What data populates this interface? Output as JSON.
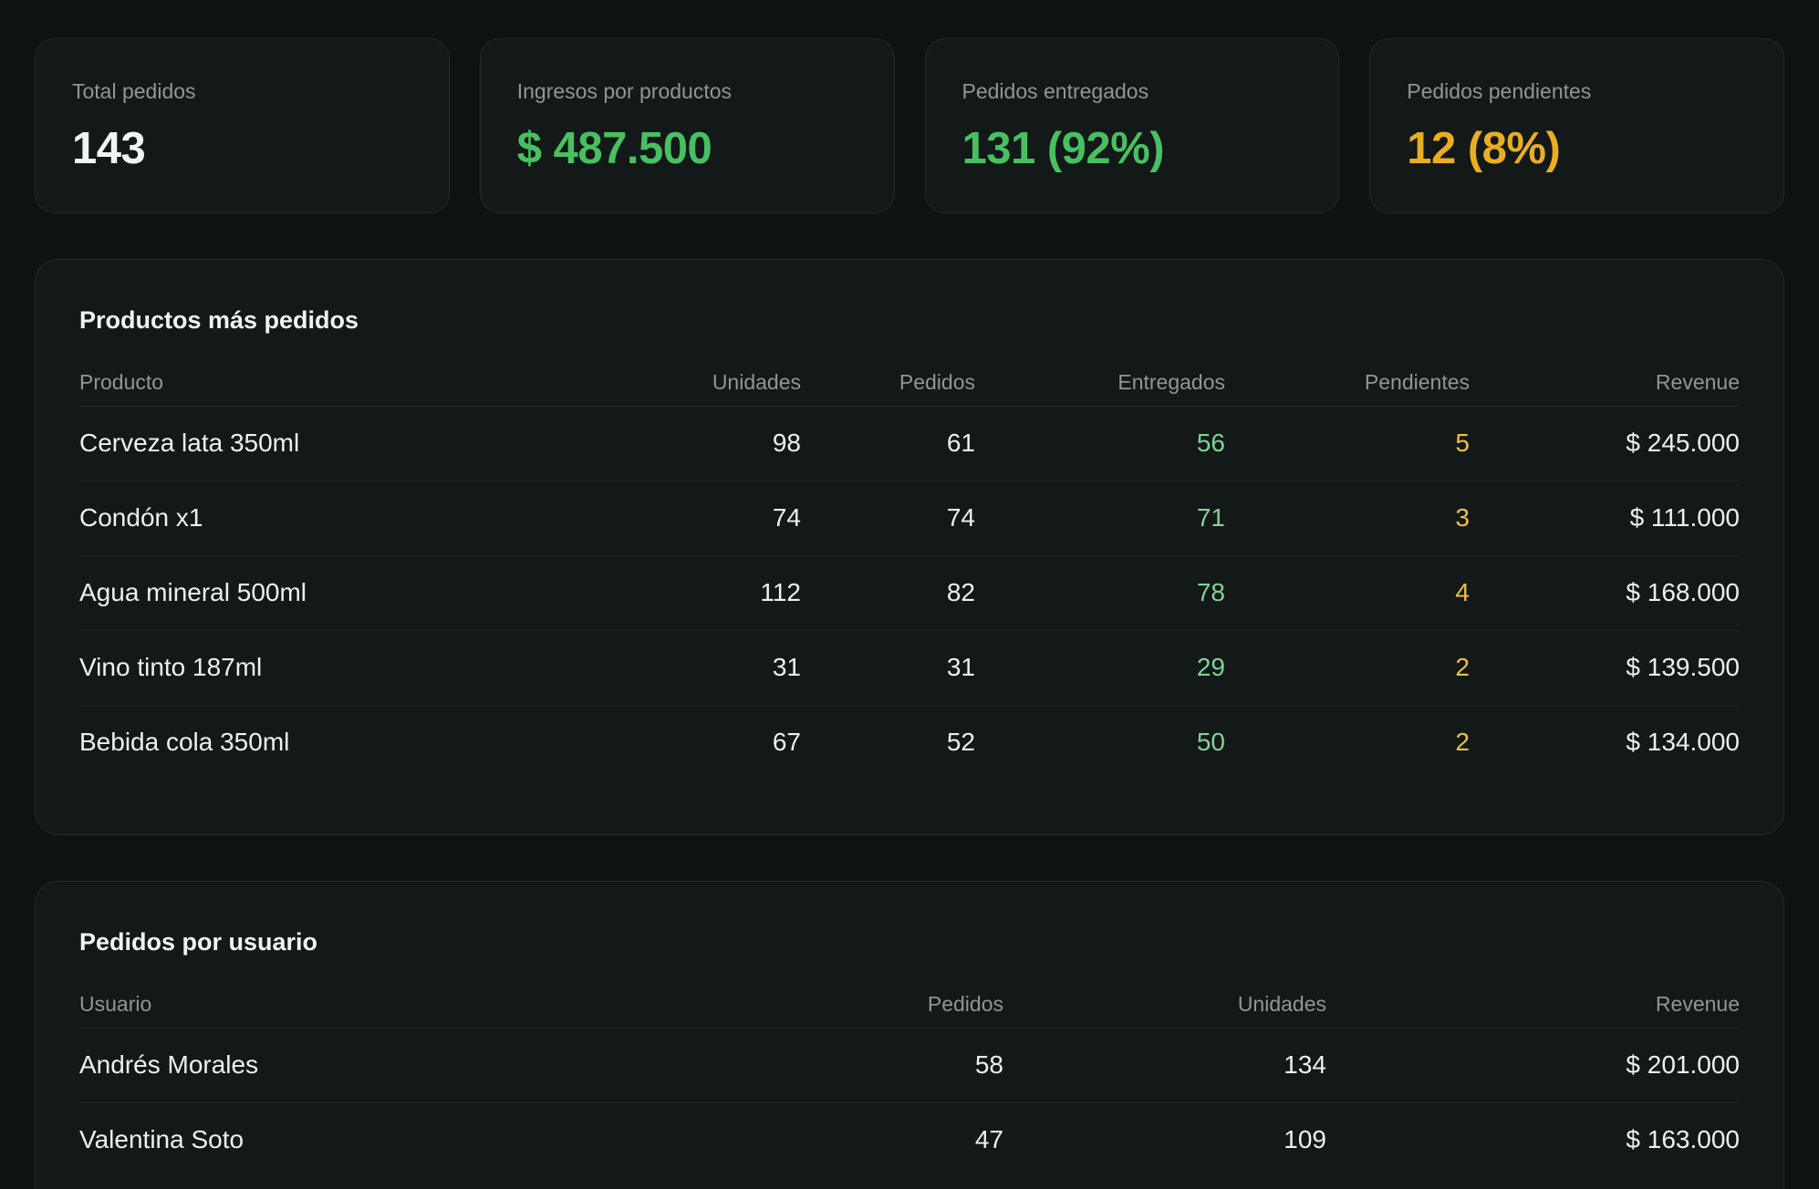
{
  "kpis": [
    {
      "label": "Total pedidos",
      "value": "143",
      "tone": "white"
    },
    {
      "label": "Ingresos por productos",
      "value": "$ 487.500",
      "tone": "green"
    },
    {
      "label": "Pedidos entregados",
      "value": "131 (92%)",
      "tone": "green"
    },
    {
      "label": "Pedidos pendientes",
      "value": "12 (8%)",
      "tone": "amber"
    }
  ],
  "products": {
    "title": "Productos más pedidos",
    "headers": {
      "product": "Producto",
      "units": "Unidades",
      "orders": "Pedidos",
      "delivered": "Entregados",
      "pending": "Pendientes",
      "revenue": "Revenue"
    },
    "rows": [
      {
        "product": "Cerveza lata 350ml",
        "units": "98",
        "orders": "61",
        "delivered": "56",
        "pending": "5",
        "revenue": "$ 245.000"
      },
      {
        "product": "Condón x1",
        "units": "74",
        "orders": "74",
        "delivered": "71",
        "pending": "3",
        "revenue": "$ 111.000"
      },
      {
        "product": "Agua mineral 500ml",
        "units": "112",
        "orders": "82",
        "delivered": "78",
        "pending": "4",
        "revenue": "$ 168.000"
      },
      {
        "product": "Vino tinto 187ml",
        "units": "31",
        "orders": "31",
        "delivered": "29",
        "pending": "2",
        "revenue": "$ 139.500"
      },
      {
        "product": "Bebida cola 350ml",
        "units": "67",
        "orders": "52",
        "delivered": "50",
        "pending": "2",
        "revenue": "$ 134.000"
      }
    ]
  },
  "users": {
    "title": "Pedidos por usuario",
    "headers": {
      "user": "Usuario",
      "orders": "Pedidos",
      "units": "Unidades",
      "revenue": "Revenue"
    },
    "rows": [
      {
        "user": "Andrés Morales",
        "orders": "58",
        "units": "134",
        "revenue": "$ 201.000"
      },
      {
        "user": "Valentina Soto",
        "orders": "47",
        "units": "109",
        "revenue": "$ 163.000"
      }
    ]
  },
  "colors": {
    "background": "#0d1212",
    "card": "#131818",
    "accent_green": "#48c062",
    "accent_amber": "#e9ae22",
    "cell_green": "#7fd496",
    "cell_amber": "#efc041"
  }
}
